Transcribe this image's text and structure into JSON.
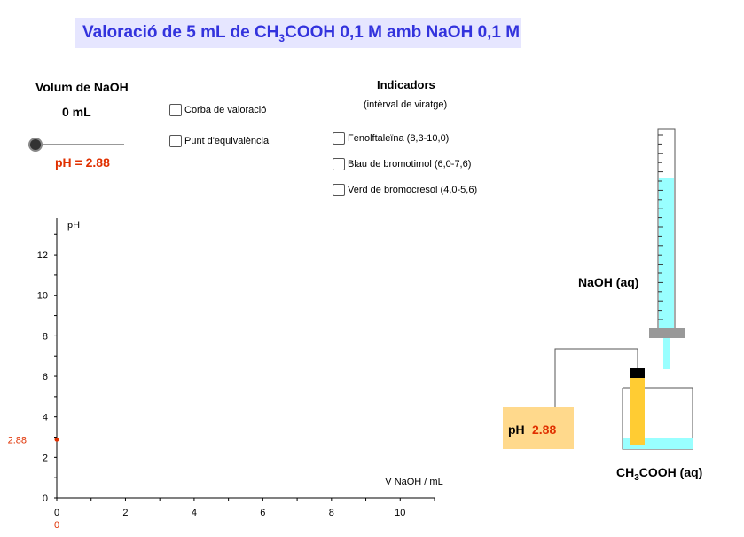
{
  "title": {
    "pre": "Valoració de 5 mL de CH",
    "sub": "3",
    "post": "COOH 0,1 M amb NaOH 0,1 M"
  },
  "volume": {
    "label": "Volum de NaOH",
    "value": "0 mL",
    "slider_fraction": 0
  },
  "ph_display": "pH = 2.88",
  "options": {
    "curve": "Corba de valoració",
    "equivalence": "Punt d'equivalència"
  },
  "indicators": {
    "title": "Indicadors",
    "subtitle": "(intèrval de viratge)",
    "items": [
      "Fenolftaleïna (8,3-10,0)",
      "Blau de bromotimol (6,0-7,6)",
      "Verd de bromocresol (4,0-5,6)"
    ]
  },
  "apparatus": {
    "burette_label": "NaOH (aq)",
    "flask_label_pre": "CH",
    "flask_label_sub": "3",
    "flask_label_post": "COOH (aq)",
    "meter_label": "pH",
    "meter_value": "2.88"
  },
  "colors": {
    "accent": "#3333dd",
    "ph": "#e03000",
    "solution": "#99ffff",
    "probe": "#ffcc33",
    "meter": "#ffd98c",
    "title_bg": "#e6e6ff"
  },
  "chart_data": {
    "type": "scatter",
    "ylabel": "pH",
    "xlabel": "V NaOH / mL",
    "xlim": [
      0,
      11
    ],
    "ylim": [
      0,
      13.8
    ],
    "xticks": [
      0,
      2,
      4,
      6,
      8,
      10
    ],
    "yticks": [
      0,
      2,
      4,
      6,
      8,
      10,
      12
    ],
    "points": [
      {
        "x": 0,
        "y": 2.88
      }
    ],
    "current_x_label": "0",
    "current_y_label": "2.88"
  }
}
